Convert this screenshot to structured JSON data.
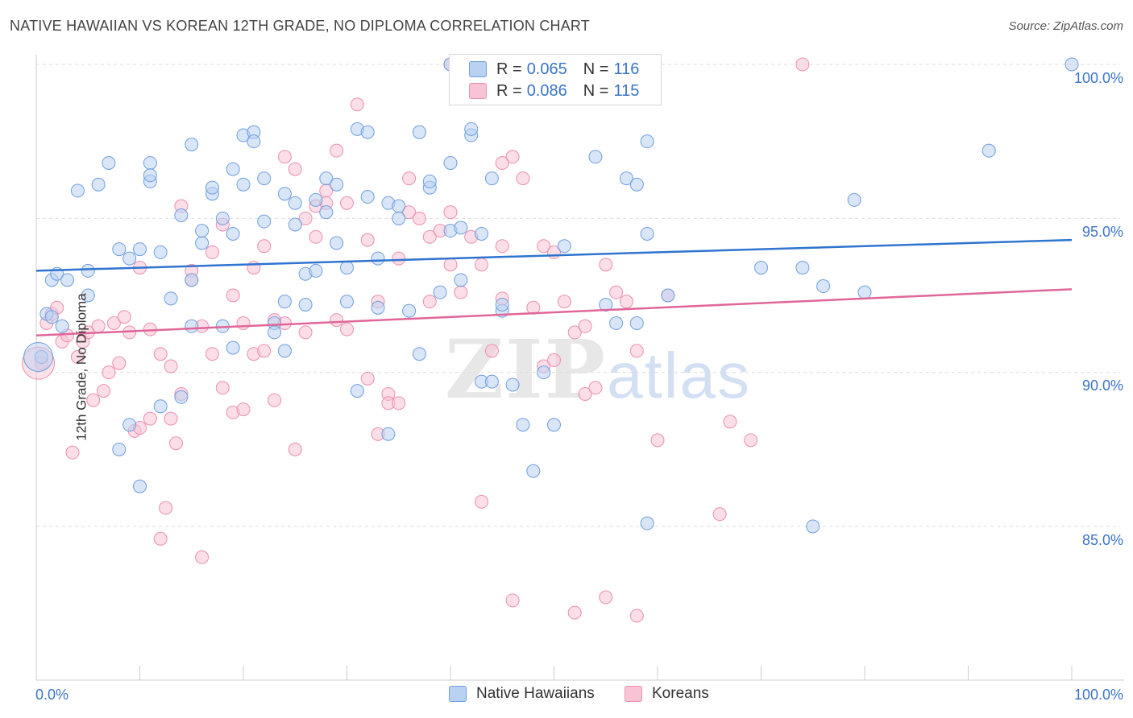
{
  "title": "NATIVE HAWAIIAN VS KOREAN 12TH GRADE, NO DIPLOMA CORRELATION CHART",
  "source": "Source: ZipAtlas.com",
  "watermark": {
    "zip": "ZIP",
    "atlas": "atlas"
  },
  "colors": {
    "blue_fill": "#b9d2f2",
    "blue_stroke": "#6f9ede",
    "blue_line": "#2f74cf",
    "pink_fill": "#f8c3d4",
    "pink_stroke": "#ec8fae",
    "pink_line": "#e0669a",
    "axis_text": "#3b74c9",
    "grid": "#dddddd"
  },
  "legend": {
    "rows": [
      {
        "r_label": "R =",
        "r_value": "0.065",
        "n_label": "N =",
        "n_value": "116"
      },
      {
        "r_label": "R =",
        "r_value": "0.086",
        "n_label": "N =",
        "n_value": "115"
      }
    ]
  },
  "bottom_legend": [
    "Native Hawaiians",
    "Koreans"
  ],
  "y_axis_title": "12th Grade, No Diploma",
  "x_ticks": {
    "left": "0.0%",
    "right": "100.0%"
  },
  "y_ticks": [
    "100.0%",
    "95.0%",
    "90.0%",
    "85.0%"
  ],
  "chart_data": {
    "type": "scatter",
    "title": "NATIVE HAWAIIAN VS KOREAN 12TH GRADE, NO DIPLOMA CORRELATION CHART",
    "xlabel": "",
    "ylabel": "12th Grade, No Diploma",
    "xlim": [
      0,
      100
    ],
    "ylim": [
      80.3,
      100.6
    ],
    "y_ticks": [
      85,
      90,
      95,
      100
    ],
    "grid": "horizontal dashed",
    "legend": "top-center",
    "series": [
      {
        "name": "Native Hawaiians",
        "r": 0.065,
        "n": 116,
        "trend": [
          [
            0,
            93.3
          ],
          [
            100,
            94.3
          ]
        ],
        "points": [
          [
            0.5,
            90.5
          ],
          [
            1,
            91.9
          ],
          [
            1.5,
            91.8
          ],
          [
            2.5,
            91.5
          ],
          [
            1.5,
            93.0
          ],
          [
            2,
            93.2
          ],
          [
            3,
            93.0
          ],
          [
            4,
            95.9
          ],
          [
            5,
            92.5
          ],
          [
            5,
            93.3
          ],
          [
            6,
            96.1
          ],
          [
            7,
            96.8
          ],
          [
            8,
            94.0
          ],
          [
            8,
            87.5
          ],
          [
            9,
            88.3
          ],
          [
            9,
            93.7
          ],
          [
            10,
            86.3
          ],
          [
            10,
            94.0
          ],
          [
            11,
            96.2
          ],
          [
            11,
            96.8
          ],
          [
            11,
            96.4
          ],
          [
            12,
            93.9
          ],
          [
            12,
            88.9
          ],
          [
            13,
            92.4
          ],
          [
            14,
            95.1
          ],
          [
            14,
            89.2
          ],
          [
            15,
            93.0
          ],
          [
            15,
            97.4
          ],
          [
            15,
            91.5
          ],
          [
            16,
            94.2
          ],
          [
            16,
            94.6
          ],
          [
            17,
            95.8
          ],
          [
            17,
            96.0
          ],
          [
            18,
            95.0
          ],
          [
            18,
            91.5
          ],
          [
            19,
            90.8
          ],
          [
            19,
            94.5
          ],
          [
            19,
            96.6
          ],
          [
            20,
            97.7
          ],
          [
            20,
            96.1
          ],
          [
            21,
            97.8
          ],
          [
            21,
            97.5
          ],
          [
            22,
            96.3
          ],
          [
            22,
            94.9
          ],
          [
            23,
            91.6
          ],
          [
            23,
            91.3
          ],
          [
            24,
            95.8
          ],
          [
            24,
            90.7
          ],
          [
            24,
            92.3
          ],
          [
            25,
            95.5
          ],
          [
            25,
            94.8
          ],
          [
            26,
            93.2
          ],
          [
            26,
            92.2
          ],
          [
            27,
            95.6
          ],
          [
            27,
            93.3
          ],
          [
            28,
            95.2
          ],
          [
            28,
            96.3
          ],
          [
            29,
            94.2
          ],
          [
            29,
            96.1
          ],
          [
            30,
            93.4
          ],
          [
            30,
            92.3
          ],
          [
            31,
            89.4
          ],
          [
            31,
            97.9
          ],
          [
            32,
            97.8
          ],
          [
            32,
            95.7
          ],
          [
            33,
            93.7
          ],
          [
            33,
            92.1
          ],
          [
            34,
            95.5
          ],
          [
            34,
            88.0
          ],
          [
            35,
            95.4
          ],
          [
            35,
            95.0
          ],
          [
            36,
            92.0
          ],
          [
            37,
            90.6
          ],
          [
            37,
            97.8
          ],
          [
            38,
            96.0
          ],
          [
            38,
            96.2
          ],
          [
            39,
            92.6
          ],
          [
            40,
            96.8
          ],
          [
            40,
            94.6
          ],
          [
            41,
            93.0
          ],
          [
            41,
            94.7
          ],
          [
            42,
            97.7
          ],
          [
            42,
            97.9
          ],
          [
            43,
            89.7
          ],
          [
            43,
            94.5
          ],
          [
            44,
            89.7
          ],
          [
            44,
            96.3
          ],
          [
            45,
            92.0
          ],
          [
            45,
            92.2
          ],
          [
            46,
            89.6
          ],
          [
            46,
            100.0
          ],
          [
            47,
            88.3
          ],
          [
            48,
            86.8
          ],
          [
            49,
            90.0
          ],
          [
            50,
            88.3
          ],
          [
            51,
            94.1
          ],
          [
            54,
            97.0
          ],
          [
            55,
            92.2
          ],
          [
            56,
            91.6
          ],
          [
            57,
            96.3
          ],
          [
            58,
            96.1
          ],
          [
            58,
            91.6
          ],
          [
            59,
            97.5
          ],
          [
            59,
            85.1
          ],
          [
            59,
            94.5
          ],
          [
            61,
            92.5
          ],
          [
            70,
            93.4
          ],
          [
            74,
            93.4
          ],
          [
            75,
            85.0
          ],
          [
            76,
            92.8
          ],
          [
            79,
            95.6
          ],
          [
            80,
            92.6
          ],
          [
            92,
            97.2
          ],
          [
            100,
            100.0
          ],
          [
            40,
            100.0
          ]
        ]
      },
      {
        "name": "Koreans",
        "r": 0.086,
        "n": 115,
        "trend": [
          [
            0,
            91.2
          ],
          [
            100,
            92.7
          ]
        ],
        "points": [
          [
            0.5,
            90.3
          ],
          [
            1,
            91.6
          ],
          [
            1.5,
            91.9
          ],
          [
            2,
            92.1
          ],
          [
            2.5,
            91.0
          ],
          [
            3,
            91.2
          ],
          [
            3.5,
            87.4
          ],
          [
            4,
            90.5
          ],
          [
            4.5,
            91.0
          ],
          [
            5,
            91.3
          ],
          [
            5.5,
            89.1
          ],
          [
            6,
            91.5
          ],
          [
            6.5,
            89.4
          ],
          [
            7,
            90.0
          ],
          [
            7.5,
            91.6
          ],
          [
            8,
            90.3
          ],
          [
            8.5,
            91.8
          ],
          [
            9,
            91.3
          ],
          [
            9.5,
            88.1
          ],
          [
            10,
            88.2
          ],
          [
            10,
            93.4
          ],
          [
            11,
            88.5
          ],
          [
            11,
            91.4
          ],
          [
            12,
            90.6
          ],
          [
            12,
            84.6
          ],
          [
            12.5,
            85.6
          ],
          [
            13,
            88.5
          ],
          [
            13,
            90.2
          ],
          [
            13.5,
            87.7
          ],
          [
            14,
            89.3
          ],
          [
            14,
            95.4
          ],
          [
            15,
            93.3
          ],
          [
            15,
            93.0
          ],
          [
            16,
            91.5
          ],
          [
            16,
            84.0
          ],
          [
            17,
            90.6
          ],
          [
            17,
            93.9
          ],
          [
            18,
            89.5
          ],
          [
            18,
            94.8
          ],
          [
            19,
            92.5
          ],
          [
            19,
            88.7
          ],
          [
            20,
            91.6
          ],
          [
            20,
            88.8
          ],
          [
            21,
            90.6
          ],
          [
            21,
            93.4
          ],
          [
            22,
            90.7
          ],
          [
            22,
            94.1
          ],
          [
            23,
            89.1
          ],
          [
            23,
            91.7
          ],
          [
            24,
            91.6
          ],
          [
            24,
            97.0
          ],
          [
            25,
            87.5
          ],
          [
            25,
            96.6
          ],
          [
            26,
            91.3
          ],
          [
            26,
            95.0
          ],
          [
            27,
            95.4
          ],
          [
            27,
            94.4
          ],
          [
            28,
            95.9
          ],
          [
            28,
            95.5
          ],
          [
            29,
            91.7
          ],
          [
            29,
            97.2
          ],
          [
            30,
            95.5
          ],
          [
            30,
            91.4
          ],
          [
            31,
            98.7
          ],
          [
            32,
            89.8
          ],
          [
            32,
            94.3
          ],
          [
            33,
            88.0
          ],
          [
            33,
            92.3
          ],
          [
            34,
            89.3
          ],
          [
            34,
            89.0
          ],
          [
            35,
            89.0
          ],
          [
            35,
            93.7
          ],
          [
            36,
            96.3
          ],
          [
            36,
            95.2
          ],
          [
            37,
            95.0
          ],
          [
            38,
            94.4
          ],
          [
            38,
            92.3
          ],
          [
            39,
            94.6
          ],
          [
            40,
            95.2
          ],
          [
            40,
            93.5
          ],
          [
            41,
            92.6
          ],
          [
            42,
            94.4
          ],
          [
            43,
            85.8
          ],
          [
            43,
            93.5
          ],
          [
            44,
            90.7
          ],
          [
            45,
            94.1
          ],
          [
            45,
            92.4
          ],
          [
            46,
            97.0
          ],
          [
            46,
            82.6
          ],
          [
            47,
            96.3
          ],
          [
            48,
            92.1
          ],
          [
            49,
            94.1
          ],
          [
            49,
            90.2
          ],
          [
            50,
            90.4
          ],
          [
            50,
            93.9
          ],
          [
            51,
            92.3
          ],
          [
            52,
            82.2
          ],
          [
            52,
            91.3
          ],
          [
            53,
            91.5
          ],
          [
            53,
            89.3
          ],
          [
            54,
            89.5
          ],
          [
            55,
            82.7
          ],
          [
            55,
            93.5
          ],
          [
            56,
            92.6
          ],
          [
            57,
            92.3
          ],
          [
            58,
            82.1
          ],
          [
            58,
            90.7
          ],
          [
            60,
            87.8
          ],
          [
            61,
            92.5
          ],
          [
            66,
            85.4
          ],
          [
            67,
            88.4
          ],
          [
            69,
            87.8
          ],
          [
            74,
            100.0
          ],
          [
            40,
            100.0
          ],
          [
            45,
            96.8
          ]
        ]
      }
    ]
  }
}
